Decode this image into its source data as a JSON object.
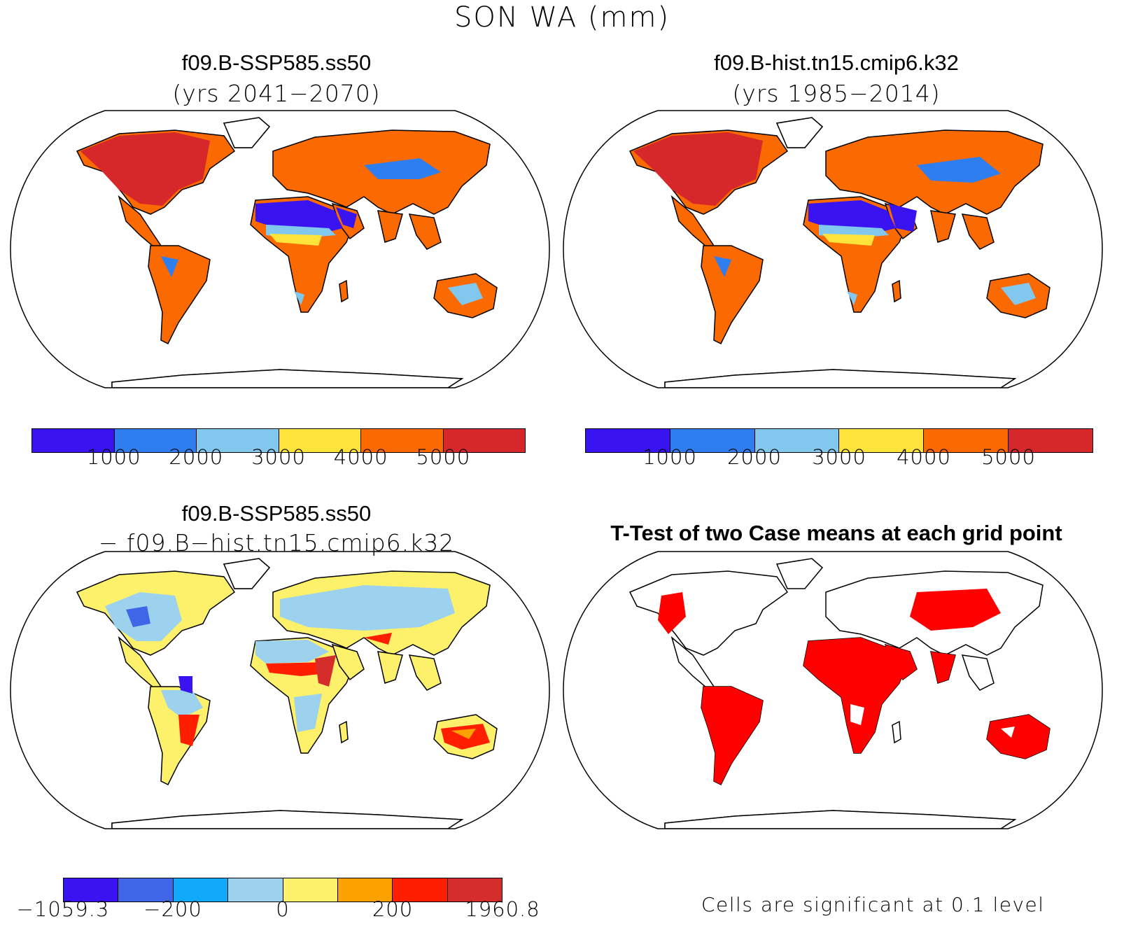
{
  "title": "SON WA (mm)",
  "panels": {
    "top_left": {
      "case": "f09.B-SSP585.ss50",
      "years": "(yrs 2041−2070)"
    },
    "top_right": {
      "case": "f09.B-hist.tn15.cmip6.k32",
      "years": "(yrs 1985−2014)"
    },
    "bottom_left": {
      "case": "f09.B-SSP585.ss50",
      "minus": "− f09.B−hist.tn15.cmip6.k32"
    },
    "bottom_right": {
      "title": "T-Test of two Case means at each grid point",
      "note": "Cells are significant at 0.1 level"
    }
  },
  "colorbar_abs": {
    "colors": [
      "#3a14f0",
      "#2e7ef0",
      "#82c8ee",
      "#fde33a",
      "#fb6a00",
      "#d6282a"
    ],
    "labels": [
      "1000",
      "2000",
      "3000",
      "4000",
      "5000"
    ]
  },
  "colorbar_diff": {
    "colors": [
      "#3a14f0",
      "#3e66e6",
      "#10a8f8",
      "#9dd2ee",
      "#fdf06a",
      "#fba200",
      "#ff1e00",
      "#d52c2c"
    ],
    "labels": [
      "−1059.3",
      "−200",
      "0",
      "200",
      "1960.8"
    ]
  },
  "signif_color": "#ff0000"
}
